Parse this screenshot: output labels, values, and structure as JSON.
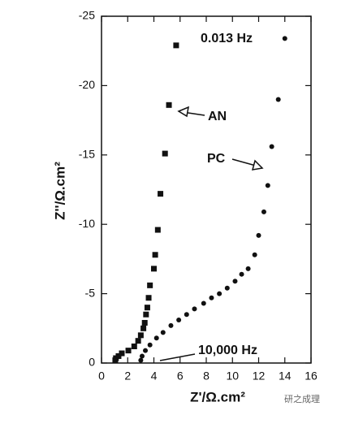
{
  "chart_data": {
    "type": "scatter",
    "xlabel": "Z'/Ω.cm²",
    "ylabel": "Z''/Ω.cm²",
    "xlim": [
      0,
      16
    ],
    "xticks": [
      0,
      2,
      4,
      6,
      8,
      10,
      12,
      14,
      16
    ],
    "ylim": [
      0,
      -25
    ],
    "yticks": [
      0,
      -5,
      -10,
      -15,
      -20,
      -25
    ],
    "annotations": [
      "0.013 Hz",
      "AN",
      "PC",
      "10,000 Hz"
    ],
    "watermark": "研之成理",
    "series": [
      {
        "name": "AN",
        "marker": "square",
        "color": "#111111",
        "x": [
          5.7,
          5.15,
          4.85,
          4.5,
          4.3,
          4.1,
          4.0,
          3.7,
          3.6,
          3.5,
          3.4,
          3.3,
          3.2,
          3.0,
          2.8,
          2.5,
          2.05,
          1.55,
          1.3,
          1.1,
          1.05
        ],
        "values": [
          -22.9,
          -18.6,
          -15.1,
          -12.2,
          -9.6,
          -7.8,
          -6.8,
          -5.6,
          -4.7,
          -4.0,
          -3.5,
          -2.9,
          -2.5,
          -2.0,
          -1.6,
          -1.2,
          -0.9,
          -0.7,
          -0.5,
          -0.35,
          -0.2
        ]
      },
      {
        "name": "PC",
        "marker": "circle",
        "color": "#111111",
        "x": [
          14.0,
          13.5,
          13.0,
          12.7,
          12.4,
          12.0,
          11.7,
          11.2,
          10.7,
          10.2,
          9.6,
          9.0,
          8.4,
          7.8,
          7.1,
          6.5,
          5.9,
          5.3,
          4.7,
          4.2,
          3.7,
          3.35,
          3.1,
          3.0
        ],
        "values": [
          -23.4,
          -19.0,
          -15.6,
          -12.8,
          -10.9,
          -9.2,
          -7.8,
          -6.8,
          -6.4,
          -5.9,
          -5.4,
          -5.0,
          -4.7,
          -4.3,
          -3.9,
          -3.5,
          -3.1,
          -2.7,
          -2.2,
          -1.8,
          -1.3,
          -0.9,
          -0.5,
          -0.2
        ]
      }
    ]
  }
}
